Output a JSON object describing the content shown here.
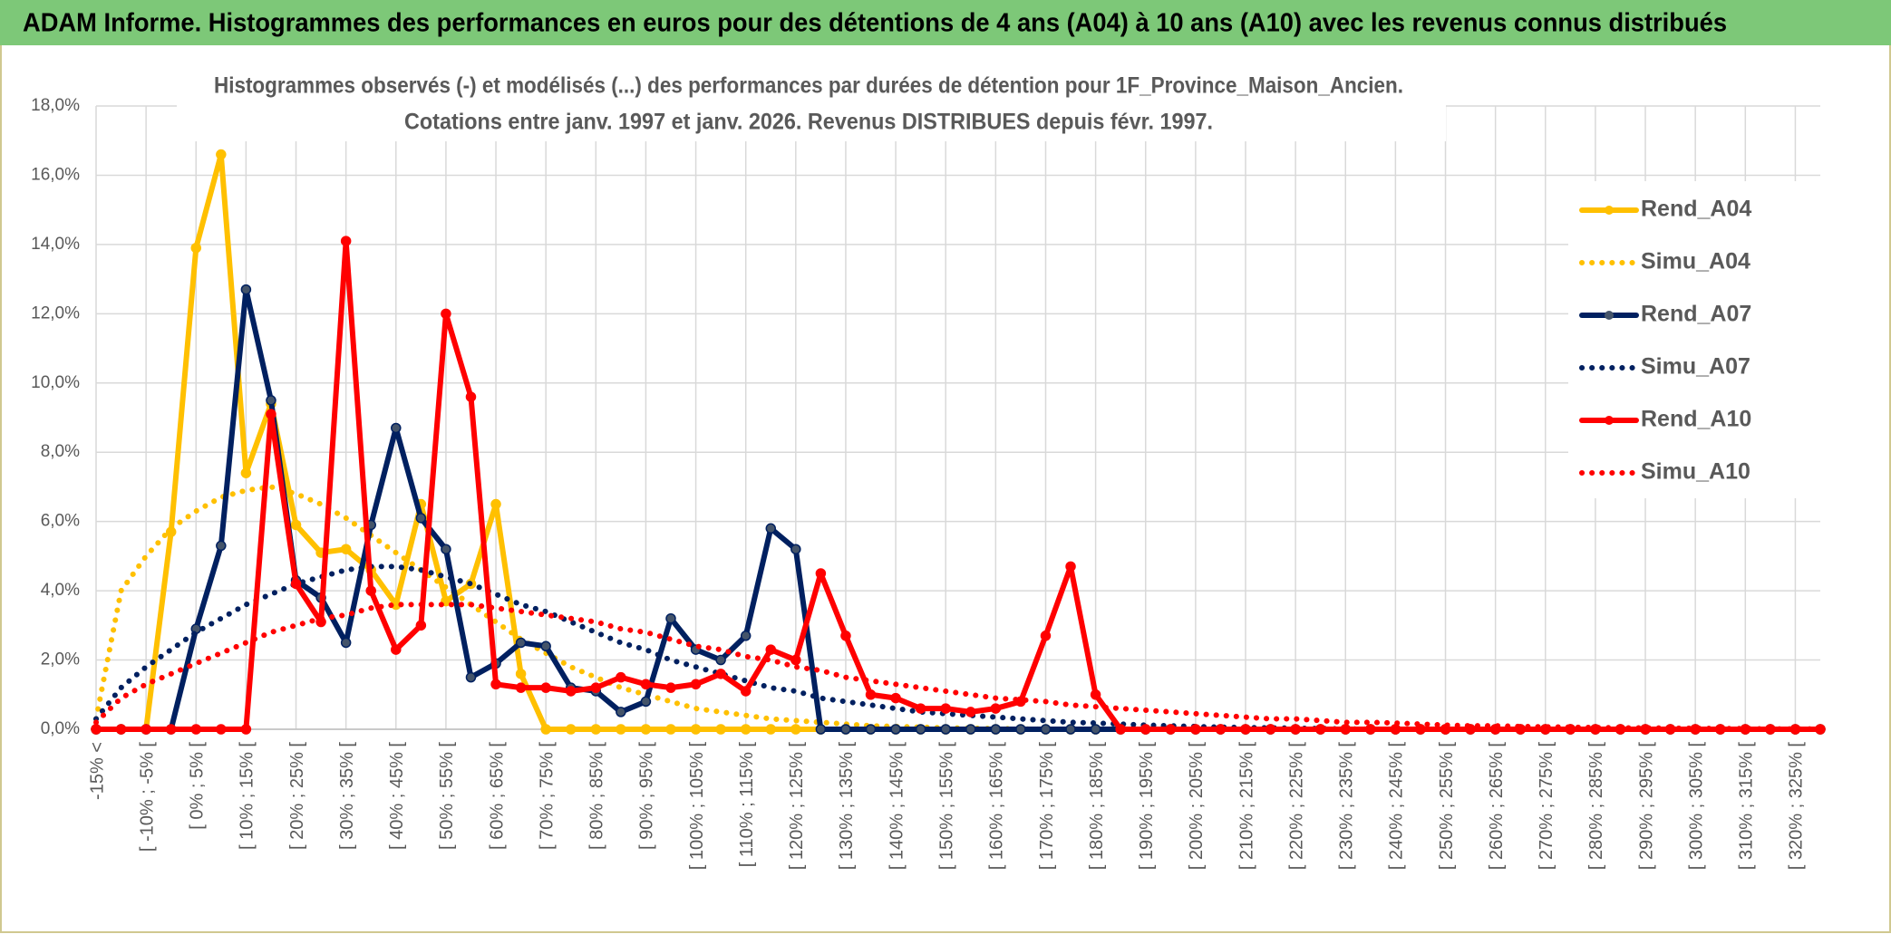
{
  "banner": "ADAM Informe. Histogrammes des performances en euros pour des détentions de 4 ans (A04) à 10 ans (A10) avec les revenus connus distribués",
  "chart_data": {
    "type": "line",
    "title": "Histogrammes observés (-) et modélisés (...) des performances par durées de détention pour 1F_Province_Maison_Ancien.",
    "subtitle": "Cotations entre janv. 1997 et janv. 2026. Revenus DISTRIBUES depuis févr. 1997.",
    "categories": [
      "-15% <",
      null,
      "[ -10% ; -5% [",
      null,
      "[ 0% ; 5% [",
      null,
      "[ 10% ; 15% [",
      null,
      "[ 20% ; 25% [",
      null,
      "[ 30% ; 35% [",
      null,
      "[ 40% ; 45% [",
      null,
      "[ 50% ; 55% [",
      null,
      "[ 60% ; 65% [",
      null,
      "[ 70% ; 75% [",
      null,
      "[ 80% ; 85% [",
      null,
      "[ 90% ; 95% [",
      null,
      "[ 100% ; 105% [",
      null,
      "[ 110% ; 115% [",
      null,
      "[ 120% ; 125% [",
      null,
      "[ 130% ; 135% [",
      null,
      "[ 140% ; 145% [",
      null,
      "[ 150% ; 155% [",
      null,
      "[ 160% ; 165% [",
      null,
      "[ 170% ; 175% [",
      null,
      "[ 180% ; 185% [",
      null,
      "[ 190% ; 195% [",
      null,
      "[ 200% ; 205% [",
      null,
      "[ 210% ; 215% [",
      null,
      "[ 220% ; 225% [",
      null,
      "[ 230% ; 235% [",
      null,
      "[ 240% ; 245% [",
      null,
      "[ 250% ; 255% [",
      null,
      "[ 260% ; 265% [",
      null,
      "[ 270% ; 275% [",
      null,
      "[ 280% ; 285% [",
      null,
      "[ 290% ; 295% [",
      null,
      "[ 300% ; 305% [",
      null,
      "[ 310% ; 315% [",
      null,
      "[ 320% ; 325% [",
      null
    ],
    "ylim": [
      0,
      18
    ],
    "yticks": [
      {
        "value": 0,
        "label": "0,0%"
      },
      {
        "value": 2,
        "label": "2,0%"
      },
      {
        "value": 4,
        "label": "4,0%"
      },
      {
        "value": 6,
        "label": "6,0%"
      },
      {
        "value": 8,
        "label": "8,0%"
      },
      {
        "value": 10,
        "label": "10,0%"
      },
      {
        "value": 12,
        "label": "12,0%"
      },
      {
        "value": 14,
        "label": "14,0%"
      },
      {
        "value": 16,
        "label": "16,0%"
      },
      {
        "value": 18,
        "label": "18,0%"
      }
    ],
    "grid": true,
    "legend": "right",
    "series": [
      {
        "name": "Rend_A04",
        "color": "#ffc000",
        "style": "solid",
        "markers": true,
        "values": [
          0,
          0,
          0,
          5.7,
          13.9,
          16.6,
          7.4,
          9.4,
          5.9,
          5.1,
          5.2,
          4.6,
          3.6,
          6.5,
          3.7,
          4.2,
          6.5,
          1.6,
          0,
          0,
          0,
          0,
          0,
          0,
          0,
          0,
          0,
          0,
          0,
          0,
          0,
          0,
          0,
          0,
          0,
          0,
          0,
          0,
          0,
          0,
          0,
          0,
          0,
          0,
          0,
          0,
          0,
          0,
          0,
          0,
          0,
          0,
          0,
          0,
          0,
          0,
          0,
          0,
          0,
          0,
          0,
          0,
          0,
          0,
          0,
          0,
          0,
          0,
          0,
          0
        ]
      },
      {
        "name": "Simu_A04",
        "color": "#ffc000",
        "style": "dotted",
        "markers": false,
        "values": [
          0.3,
          4.0,
          5.0,
          5.8,
          6.3,
          6.7,
          6.9,
          7.0,
          6.8,
          6.5,
          6.1,
          5.6,
          5.1,
          4.6,
          4.1,
          3.6,
          3.1,
          2.6,
          2.2,
          1.8,
          1.5,
          1.2,
          1.0,
          0.8,
          0.6,
          0.5,
          0.4,
          0.3,
          0.25,
          0.2,
          0.15,
          0.1,
          0.08,
          0.06,
          0.04,
          0.03,
          0.02,
          0.01,
          0,
          0,
          0,
          0,
          0,
          0,
          0,
          0,
          0,
          0,
          0,
          0,
          0,
          0,
          0,
          0,
          0,
          0,
          0,
          0,
          0,
          0,
          0,
          0,
          0,
          0,
          0,
          0,
          0,
          0,
          0,
          0
        ]
      },
      {
        "name": "Rend_A07",
        "color": "#002060",
        "style": "solid",
        "markers": true,
        "values": [
          0,
          0,
          0,
          0,
          2.9,
          5.3,
          12.7,
          9.5,
          4.3,
          3.8,
          2.5,
          5.9,
          8.7,
          6.1,
          5.2,
          1.5,
          1.9,
          2.5,
          2.4,
          1.2,
          1.1,
          0.5,
          0.8,
          3.2,
          2.3,
          2.0,
          2.7,
          5.8,
          5.2,
          0,
          0,
          0,
          0,
          0,
          0,
          0,
          0,
          0,
          0,
          0,
          0,
          0,
          0,
          0,
          0,
          0,
          0,
          0,
          0,
          0,
          0,
          0,
          0,
          0,
          0,
          0,
          0,
          0,
          0,
          0,
          0,
          0,
          0,
          0,
          0,
          0,
          0,
          0,
          0,
          0
        ]
      },
      {
        "name": "Simu_A07",
        "color": "#002060",
        "style": "dotted",
        "markers": false,
        "values": [
          0.3,
          1.2,
          1.8,
          2.3,
          2.8,
          3.2,
          3.6,
          3.9,
          4.2,
          4.4,
          4.6,
          4.7,
          4.7,
          4.6,
          4.4,
          4.2,
          3.9,
          3.6,
          3.4,
          3.1,
          2.8,
          2.5,
          2.3,
          2.0,
          1.8,
          1.6,
          1.4,
          1.2,
          1.1,
          0.9,
          0.8,
          0.7,
          0.6,
          0.5,
          0.45,
          0.4,
          0.35,
          0.3,
          0.25,
          0.2,
          0.18,
          0.15,
          0.12,
          0.1,
          0.08,
          0.06,
          0.05,
          0.04,
          0.03,
          0.02,
          0.01,
          0,
          0,
          0,
          0,
          0,
          0,
          0,
          0,
          0,
          0,
          0,
          0,
          0,
          0,
          0,
          0,
          0,
          0,
          0
        ]
      },
      {
        "name": "Rend_A10",
        "color": "#ff0000",
        "style": "solid",
        "markers": true,
        "values": [
          0,
          0,
          0,
          0,
          0,
          0,
          0,
          9.1,
          4.2,
          3.1,
          14.1,
          4.0,
          2.3,
          3.0,
          12.0,
          9.6,
          1.3,
          1.2,
          1.2,
          1.1,
          1.2,
          1.5,
          1.3,
          1.2,
          1.3,
          1.6,
          1.1,
          2.3,
          2.0,
          4.5,
          2.7,
          1.0,
          0.9,
          0.6,
          0.6,
          0.5,
          0.6,
          0.8,
          2.7,
          4.7,
          1.0,
          0,
          0,
          0,
          0,
          0,
          0,
          0,
          0,
          0,
          0,
          0,
          0,
          0,
          0,
          0,
          0,
          0,
          0,
          0,
          0,
          0,
          0,
          0,
          0,
          0,
          0,
          0,
          0,
          0
        ]
      },
      {
        "name": "Simu_A10",
        "color": "#ff0000",
        "style": "dotted",
        "markers": false,
        "values": [
          0.2,
          0.9,
          1.3,
          1.6,
          1.9,
          2.2,
          2.5,
          2.8,
          3.0,
          3.2,
          3.3,
          3.5,
          3.6,
          3.6,
          3.6,
          3.6,
          3.5,
          3.4,
          3.3,
          3.2,
          3.1,
          2.9,
          2.8,
          2.6,
          2.4,
          2.3,
          2.1,
          2.0,
          1.8,
          1.7,
          1.5,
          1.4,
          1.3,
          1.2,
          1.1,
          1.0,
          0.9,
          0.85,
          0.8,
          0.7,
          0.65,
          0.6,
          0.55,
          0.5,
          0.45,
          0.4,
          0.35,
          0.3,
          0.3,
          0.25,
          0.2,
          0.2,
          0.18,
          0.15,
          0.12,
          0.1,
          0.1,
          0.08,
          0.07,
          0.06,
          0.05,
          0.04,
          0.04,
          0.03,
          0.03,
          0.02,
          0.02,
          0.01,
          0.01,
          0.01
        ]
      }
    ]
  }
}
